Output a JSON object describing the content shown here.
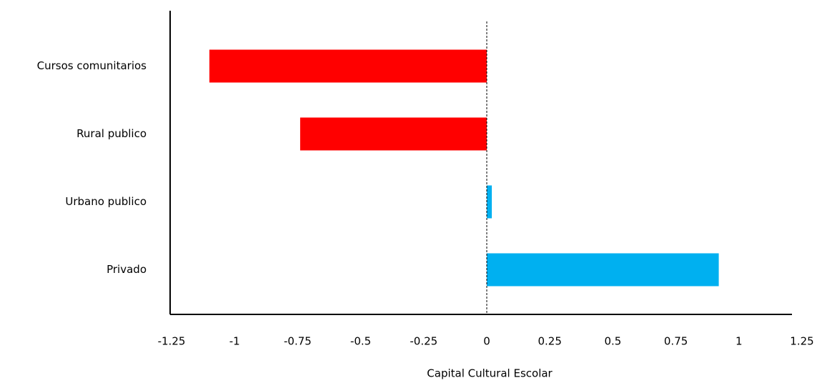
{
  "chart_data": {
    "type": "bar",
    "orientation": "horizontal",
    "x_label": "Capital Cultural Escolar",
    "categories": [
      "Cursos comunitarios",
      "Rural publico",
      "Urbano publico",
      "Privado"
    ],
    "values": [
      -1.1,
      -0.74,
      0.02,
      0.92
    ],
    "colors": [
      "#ff0000",
      "#ff0000",
      "#00b0f0",
      "#00b0f0"
    ],
    "xlim": [
      -1.25,
      1.25
    ],
    "xticks": [
      -1.25,
      -1,
      -0.75,
      -0.5,
      -0.25,
      0,
      0.25,
      0.5,
      0.75,
      1,
      1.25
    ],
    "grid": false
  }
}
